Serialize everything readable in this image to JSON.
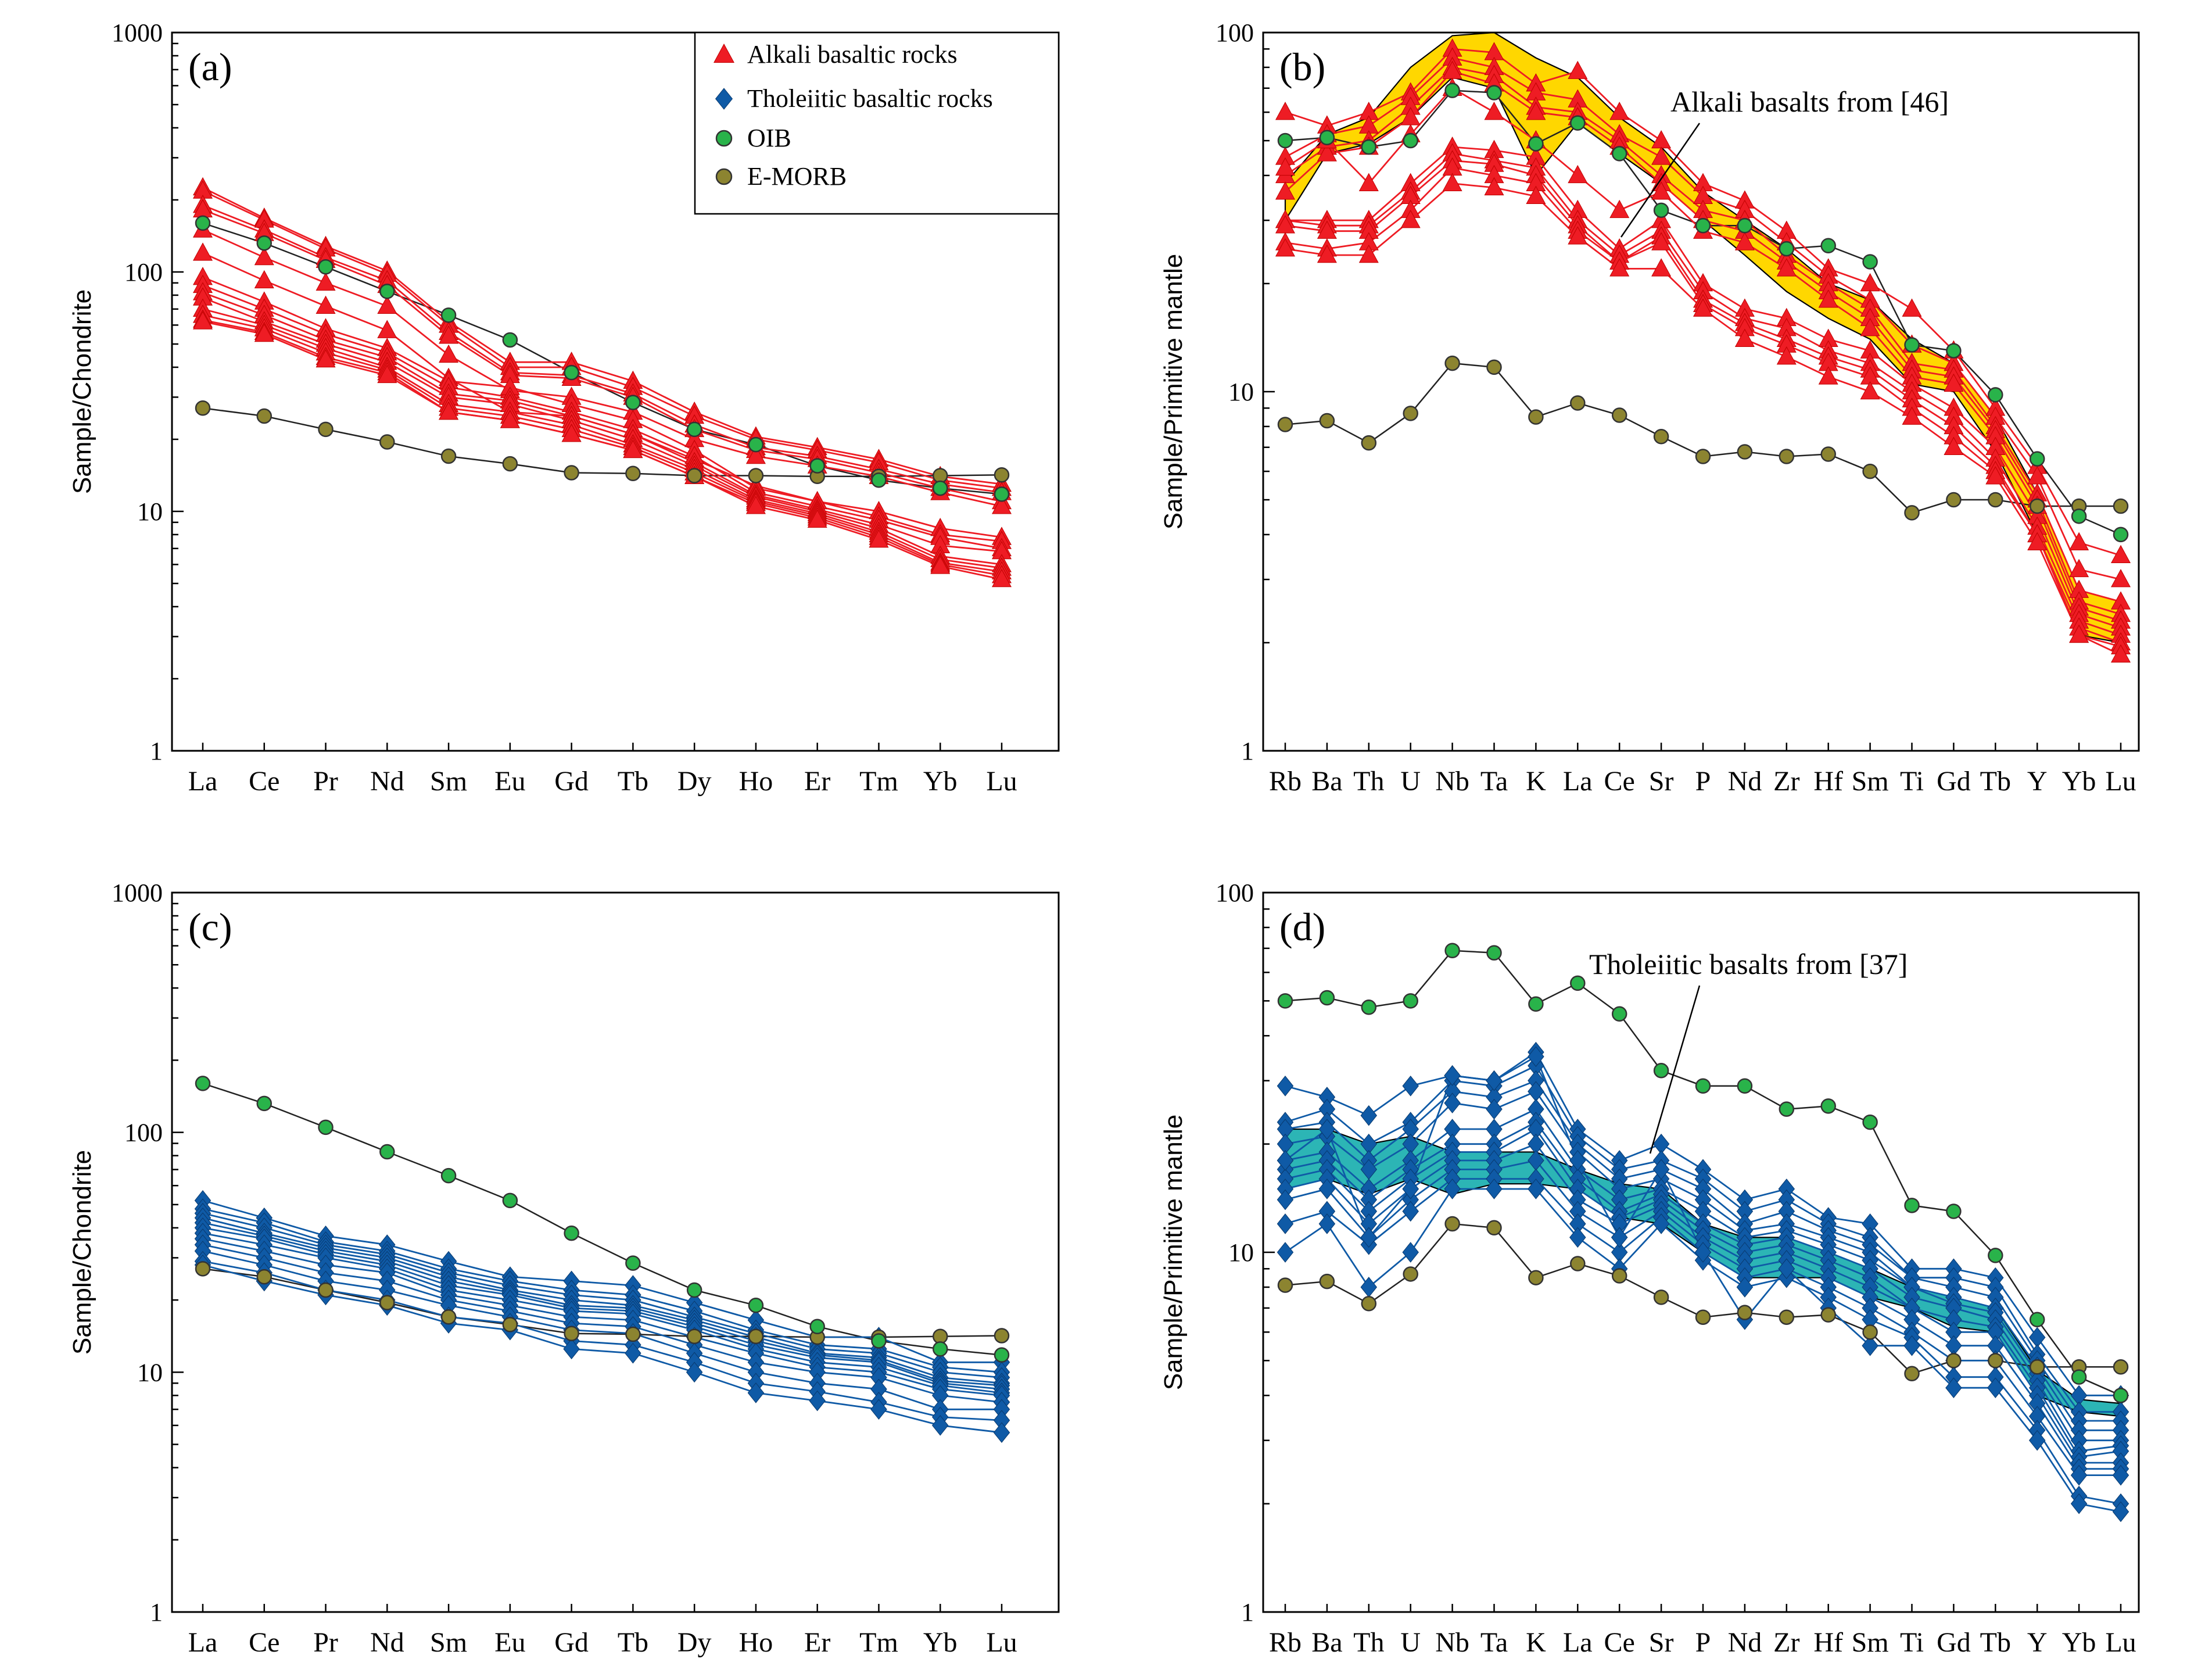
{
  "colors": {
    "alkali": "#ee1c24",
    "tholeiitic": "#0f5aa6",
    "oib_fill": "#29b34a",
    "emorb_fill": "#8c8430",
    "marker_stroke": "#333333",
    "ref_line": "#222222",
    "alkali_field": "#ffd700",
    "thol_field": "#2cb5b5"
  },
  "legend": {
    "alkali": "Alkali basaltic rocks",
    "tholeiitic": "Tholeiitic basaltic rocks",
    "oib": "OIB",
    "emorb": "E-MORB"
  },
  "chart_data": [
    {
      "id": "a",
      "panel_label": "(a)",
      "type": "line",
      "scale": "log",
      "ylabel": "Sample/Chondrite",
      "ylim": [
        1,
        1000
      ],
      "yticks": [
        "1",
        "10",
        "100",
        "1000"
      ],
      "categories": [
        "La",
        "Ce",
        "Pr",
        "Nd",
        "Sm",
        "Eu",
        "Gd",
        "Tb",
        "Dy",
        "Ho",
        "Er",
        "Tm",
        "Yb",
        "Lu"
      ],
      "sample_group": "alkali",
      "samples": [
        [
          225,
          168,
          128,
          101,
          62,
          42,
          42,
          35,
          26,
          20.5,
          18.5,
          16.5,
          14,
          13
        ],
        [
          218,
          165,
          125,
          98,
          60,
          40,
          40,
          33,
          25,
          20,
          18,
          16,
          13.5,
          12.5
        ],
        [
          190,
          150,
          115,
          92,
          56,
          38,
          37,
          31,
          23,
          18.5,
          17,
          15,
          13,
          12
        ],
        [
          182,
          145,
          112,
          88,
          54,
          37,
          36,
          30,
          22,
          18,
          16.5,
          14.5,
          12.5,
          11
        ],
        [
          150,
          115,
          90,
          72,
          45,
          32,
          30,
          26,
          20,
          17,
          15.5,
          14,
          12,
          10.5
        ],
        [
          120,
          92,
          72,
          57,
          36,
          26,
          25,
          21,
          16.5,
          12.8,
          11,
          10,
          8.5,
          7.8
        ],
        [
          95,
          75,
          58,
          48,
          35,
          33,
          28,
          24,
          18,
          12.5,
          11,
          9.5,
          8,
          7.5
        ],
        [
          88,
          70,
          55,
          46,
          33,
          30,
          26,
          22,
          17,
          12,
          10.5,
          9.2,
          7.8,
          7
        ],
        [
          82,
          66,
          52,
          44,
          31,
          29,
          25,
          21,
          16,
          11.7,
          10.2,
          8.8,
          7.2,
          6.8
        ],
        [
          78,
          62,
          50,
          42,
          30,
          28,
          24,
          20,
          15.5,
          11.5,
          10,
          8.5,
          6.5,
          6
        ],
        [
          70,
          60,
          48,
          40,
          28,
          26,
          23,
          19,
          15,
          11.2,
          9.8,
          8.2,
          6.3,
          5.8
        ],
        [
          66,
          58,
          46,
          39,
          27,
          25,
          22,
          18.5,
          14.5,
          11,
          9.6,
          8,
          6.1,
          5.6
        ],
        [
          63,
          56,
          44,
          38,
          26,
          24,
          21,
          18,
          14,
          10.8,
          9.4,
          7.8,
          6,
          5.4
        ],
        [
          62,
          55,
          43,
          37,
          26,
          24,
          21,
          18,
          14,
          10.5,
          9.2,
          7.6,
          5.9,
          5.2
        ]
      ],
      "oib": [
        160,
        132,
        105,
        83,
        66,
        52,
        38,
        28.5,
        22,
        19,
        15.5,
        13.5,
        12.5,
        11.8
      ],
      "emorb": [
        27,
        25,
        22,
        19.5,
        17,
        15.8,
        14.5,
        14.4,
        14.1,
        14.1,
        14,
        14,
        14.1,
        14.2
      ]
    },
    {
      "id": "b",
      "panel_label": "(b)",
      "type": "line",
      "scale": "log",
      "ylabel": "Sample/Primitive mantle",
      "ylim": [
        1,
        100
      ],
      "yticks": [
        "1",
        "10",
        "100"
      ],
      "categories": [
        "Rb",
        "Ba",
        "Th",
        "U",
        "Nb",
        "Ta",
        "K",
        "La",
        "Ce",
        "Sr",
        "P",
        "Nd",
        "Zr",
        "Hf",
        "Sm",
        "Ti",
        "Gd",
        "Tb",
        "Y",
        "Yb",
        "Lu"
      ],
      "sample_group": "alkali",
      "samples": [
        [
          60,
          55,
          60,
          68,
          90,
          88,
          72,
          78,
          60,
          50,
          38,
          34,
          28,
          22,
          20,
          17,
          13,
          9,
          6.2,
          3.8,
          3.5
        ],
        [
          45,
          52,
          55,
          66,
          85,
          80,
          68,
          65,
          52,
          45,
          35,
          32,
          26,
          21,
          18,
          13.5,
          12,
          8.5,
          5.8,
          3.2,
          3
        ],
        [
          40,
          48,
          50,
          62,
          80,
          76,
          62,
          60,
          50,
          40,
          32,
          30,
          24,
          20,
          17,
          12,
          11.5,
          8,
          5.2,
          2.8,
          2.6
        ],
        [
          36,
          46,
          48,
          58,
          78,
          72,
          60,
          58,
          48,
          38,
          30,
          28,
          23,
          19,
          16,
          11.5,
          11,
          7.8,
          5,
          2.6,
          2.4
        ],
        [
          42,
          50,
          38,
          52,
          70,
          60,
          50,
          40,
          32,
          36,
          28,
          26,
          22,
          18,
          15,
          11,
          10.5,
          7.5,
          4.8,
          2.5,
          2.3
        ],
        [
          30,
          30,
          30,
          38,
          48,
          47,
          45,
          32,
          25,
          30,
          20,
          17,
          16,
          14,
          13,
          10.5,
          9,
          7,
          4.5,
          2.4,
          2.2
        ],
        [
          30,
          29,
          29,
          36,
          46,
          44,
          42,
          30,
          24,
          28,
          19,
          16,
          15,
          13,
          12,
          10,
          8.5,
          6.5,
          4.2,
          2.3,
          2.1
        ],
        [
          29,
          28,
          28,
          35,
          44,
          43,
          40,
          29,
          23,
          27,
          18,
          15.5,
          14,
          12.5,
          11.5,
          9.5,
          8,
          6.2,
          4,
          2.2,
          2
        ],
        [
          26,
          25,
          26,
          32,
          42,
          40,
          38,
          28,
          23,
          26,
          17.5,
          15,
          13.5,
          12,
          11,
          9,
          7.5,
          6,
          4,
          2.1,
          1.95
        ],
        [
          25,
          24,
          24,
          30,
          38,
          37,
          35,
          27,
          22,
          22,
          17,
          14,
          12.5,
          11,
          10,
          8.5,
          7,
          5.8,
          3.8,
          2.1,
          1.85
        ]
      ],
      "field_upper": [
        38,
        52,
        58,
        80,
        98,
        100,
        85,
        75,
        58,
        48,
        36,
        30,
        25,
        20,
        18,
        14,
        12,
        8.5,
        5.2,
        2.8,
        2.6
      ],
      "field_lower": [
        30,
        46,
        49,
        58,
        75,
        70,
        40,
        56,
        46,
        38,
        30,
        24,
        19,
        16,
        14,
        10.5,
        10,
        6.8,
        4,
        2.1,
        2
      ],
      "field_label": "Alkali basalts from [46]",
      "oib": [
        50,
        51,
        48,
        50,
        69,
        68,
        49,
        56,
        46,
        32,
        29,
        29,
        25,
        25.5,
        23,
        13.5,
        13,
        9.8,
        6.5,
        4.5,
        4
      ],
      "emorb": [
        8.1,
        8.3,
        7.2,
        8.7,
        12,
        11.7,
        8.5,
        9.3,
        8.6,
        7.5,
        6.6,
        6.8,
        6.6,
        6.7,
        6,
        4.6,
        5,
        5,
        4.8,
        4.8,
        4.8
      ]
    },
    {
      "id": "c",
      "panel_label": "(c)",
      "type": "line",
      "scale": "log",
      "ylabel": "Sample/Chondrite",
      "ylim": [
        1,
        1000
      ],
      "yticks": [
        "1",
        "10",
        "100",
        "1000"
      ],
      "categories": [
        "La",
        "Ce",
        "Pr",
        "Nd",
        "Sm",
        "Eu",
        "Gd",
        "Tb",
        "Dy",
        "Ho",
        "Er",
        "Tm",
        "Yb",
        "Lu"
      ],
      "sample_group": "tholeiitic",
      "samples": [
        [
          52,
          44,
          37,
          34,
          29,
          25,
          24,
          23,
          19.5,
          16.5,
          14,
          14,
          11,
          11
        ],
        [
          48,
          42,
          35,
          32,
          27,
          24,
          22,
          21,
          18,
          15,
          13,
          12.5,
          10.5,
          10
        ],
        [
          46,
          40,
          34,
          31,
          26,
          23,
          21,
          20,
          17,
          14.5,
          12.5,
          12,
          10,
          9.5
        ],
        [
          44,
          38,
          33,
          30,
          25,
          22,
          20,
          19,
          16.5,
          14,
          12,
          11.5,
          9.5,
          9
        ],
        [
          42,
          37,
          32,
          29,
          24,
          21.5,
          19,
          18.5,
          16,
          13.5,
          11.8,
          11.2,
          9.2,
          8.8
        ],
        [
          40,
          36,
          31,
          28,
          23,
          21,
          18.5,
          18,
          15.5,
          13,
          11.5,
          11,
          9,
          8.5
        ],
        [
          38,
          34,
          30,
          27,
          22,
          20,
          18,
          17.5,
          15,
          12.5,
          11,
          10.5,
          8.8,
          8.2
        ],
        [
          36,
          32,
          28,
          26,
          21,
          19,
          17,
          16.5,
          14,
          12,
          10.5,
          10,
          8.5,
          8
        ],
        [
          34,
          30,
          26,
          24,
          20,
          18,
          16,
          15.5,
          13,
          11,
          10,
          9.5,
          8,
          7.5
        ],
        [
          32,
          28,
          24,
          22,
          19,
          17,
          15,
          14.5,
          12,
          10,
          9,
          8.5,
          7,
          7
        ],
        [
          29,
          26,
          22,
          20,
          17,
          16,
          13.5,
          13,
          11,
          9,
          8.3,
          7.5,
          6.5,
          6.3
        ],
        [
          28,
          24,
          21,
          19,
          16,
          15,
          12.5,
          12,
          10,
          8.2,
          7.6,
          7,
          6,
          5.6
        ]
      ],
      "oib": [
        160,
        132,
        105,
        83,
        66,
        52,
        38,
        28.5,
        22,
        19,
        15.5,
        13.5,
        12.5,
        11.8
      ],
      "emorb": [
        27,
        25,
        22,
        19.5,
        17,
        15.8,
        14.5,
        14.4,
        14.1,
        14.1,
        14,
        14,
        14.1,
        14.2
      ]
    },
    {
      "id": "d",
      "panel_label": "(d)",
      "type": "line",
      "scale": "log",
      "ylabel": "Sample/Primitive mantle",
      "ylim": [
        1,
        100
      ],
      "yticks": [
        "1",
        "10",
        "100"
      ],
      "categories": [
        "Rb",
        "Ba",
        "Th",
        "U",
        "Nb",
        "Ta",
        "K",
        "La",
        "Ce",
        "Sr",
        "P",
        "Nd",
        "Zr",
        "Hf",
        "Sm",
        "Ti",
        "Gd",
        "Tb",
        "Y",
        "Yb",
        "Lu"
      ],
      "sample_group": "tholeiitic",
      "samples": [
        [
          29,
          27,
          24,
          29,
          31,
          30,
          36,
          22,
          18,
          20,
          17,
          14,
          15,
          12.5,
          12,
          9,
          9,
          8.5,
          5.8,
          4,
          4
        ],
        [
          23,
          25,
          20,
          23,
          30,
          29,
          33,
          21,
          17,
          18,
          16,
          13,
          14,
          12,
          11,
          8.5,
          8.5,
          8,
          5.2,
          3.6,
          3.6
        ],
        [
          22,
          23,
          18,
          22,
          28,
          27,
          30,
          20,
          16,
          17,
          15,
          12,
          13,
          11.5,
          10.5,
          8.5,
          8,
          7.5,
          5,
          3.4,
          3.4
        ],
        [
          20,
          21,
          17,
          20,
          26,
          25,
          28,
          19,
          15,
          16,
          14,
          11.5,
          12,
          11,
          10,
          8,
          7.5,
          7,
          4.8,
          3.2,
          3.2
        ],
        [
          18,
          19,
          15,
          18,
          22,
          22,
          25,
          17,
          14,
          15,
          13,
          11,
          11.5,
          10.5,
          9.5,
          8,
          7.2,
          6.8,
          4.6,
          3,
          3
        ],
        [
          17,
          18,
          14,
          17,
          20,
          20,
          23,
          16,
          13,
          14.5,
          12,
          10.5,
          11,
          10,
          9,
          7.5,
          7,
          6.5,
          4.4,
          2.8,
          2.9
        ],
        [
          16,
          17,
          13,
          16,
          19,
          19,
          22,
          15,
          12.5,
          14,
          11.5,
          10,
          10.5,
          9.5,
          8.5,
          7,
          6.5,
          6.2,
          4.2,
          2.7,
          2.8
        ],
        [
          15,
          16,
          12,
          15,
          18,
          18,
          20,
          14,
          12,
          13.5,
          11,
          9.5,
          10,
          9,
          8,
          7,
          6,
          6,
          4,
          2.6,
          2.6
        ],
        [
          14,
          15,
          11,
          14,
          17,
          17,
          18,
          13,
          11,
          13,
          10.5,
          9,
          9.5,
          8.5,
          7.5,
          6.5,
          5.5,
          5.5,
          3.8,
          2.5,
          2.5
        ],
        [
          12,
          13,
          10.5,
          13,
          16,
          16,
          16,
          12,
          10,
          12.5,
          10,
          8.5,
          9,
          8,
          7,
          6,
          5,
          5,
          3.5,
          2.4,
          2.4
        ],
        [
          10,
          12,
          8,
          10,
          15,
          15,
          15,
          11,
          9,
          12,
          9.5,
          8,
          8.5,
          7.5,
          6.5,
          5.8,
          4.5,
          4.5,
          3.2,
          2.1,
          2
        ],
        [
          18,
          22,
          11,
          15,
          31,
          30,
          35,
          18,
          11,
          17,
          10,
          6.5,
          9,
          7,
          5.5,
          5.5,
          4.2,
          4.2,
          3,
          2,
          1.9
        ]
      ],
      "field_upper": [
        22,
        22,
        20,
        21,
        19,
        19,
        19,
        17,
        15.5,
        15,
        12,
        11,
        11,
        10,
        9,
        8,
        7.5,
        7,
        4.7,
        3.9,
        3.8
      ],
      "field_lower": [
        15,
        16,
        14.5,
        16,
        14.5,
        15.5,
        15.5,
        15,
        12.5,
        12,
        10,
        8.5,
        8.5,
        8.5,
        7.5,
        7,
        6.2,
        6,
        4,
        3.6,
        3.5
      ],
      "field_label": "Tholeiitic basalts from [37]",
      "oib": [
        50,
        51,
        48,
        50,
        69,
        68,
        49,
        56,
        46,
        32,
        29,
        29,
        25,
        25.5,
        23,
        13.5,
        13,
        9.8,
        6.5,
        4.5,
        4
      ],
      "emorb": [
        8.1,
        8.3,
        7.2,
        8.7,
        12,
        11.7,
        8.5,
        9.3,
        8.6,
        7.5,
        6.6,
        6.8,
        6.6,
        6.7,
        6,
        4.6,
        5,
        5,
        4.8,
        4.8,
        4.8
      ]
    }
  ]
}
